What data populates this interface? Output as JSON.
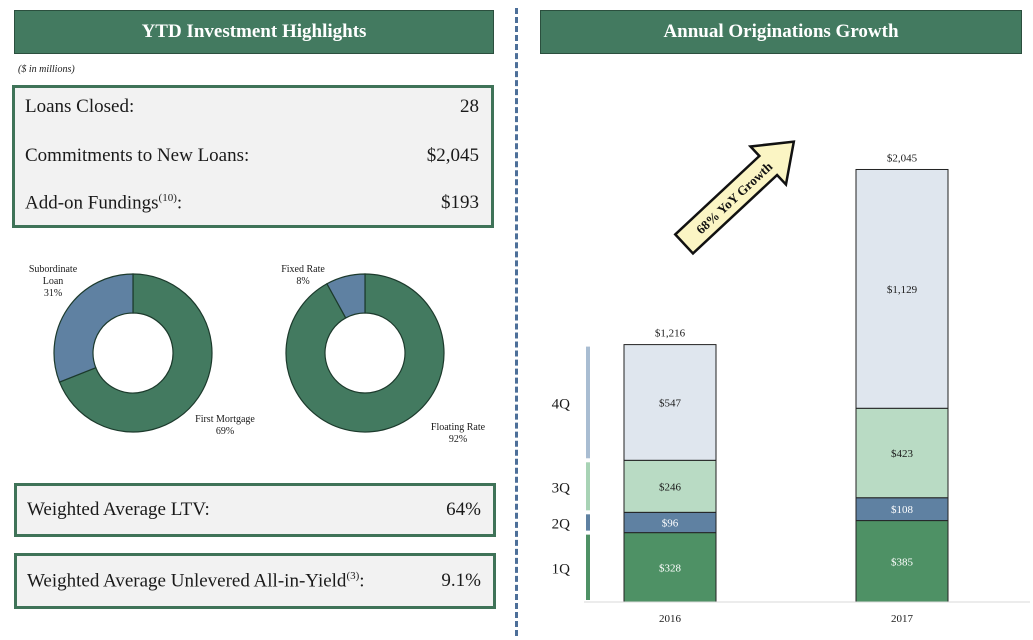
{
  "left": {
    "header": "YTD Investment Highlights",
    "units_note": "($ in millions)",
    "highlights": [
      {
        "label": "Loans Closed:",
        "value": "28"
      },
      {
        "label": "Commitments to New Loans:",
        "value": "$2,045"
      },
      {
        "label": "Add-on Fundings",
        "sup": "(10)",
        "suffix": ":",
        "value": "$193"
      }
    ],
    "donut_left": {
      "slices": [
        {
          "name_lines": [
            "Subordinate",
            "Loan"
          ],
          "pct_label": "31%",
          "value": 31,
          "color": "#5f81a2"
        },
        {
          "name_lines": [
            "First Mortgage"
          ],
          "pct_label": "69%",
          "value": 69,
          "color": "#437a60"
        }
      ]
    },
    "donut_right": {
      "slices": [
        {
          "name_lines": [
            "Fixed Rate"
          ],
          "pct_label": "8%",
          "value": 8,
          "color": "#5f81a2"
        },
        {
          "name_lines": [
            "Floating Rate"
          ],
          "pct_label": "92%",
          "value": 92,
          "color": "#437a60"
        }
      ]
    },
    "ltv": {
      "label": "Weighted Average LTV:",
      "value": "64%"
    },
    "yield": {
      "label": "Weighted Average Unlevered All-in-Yield",
      "sup": "(3)",
      "suffix": ":",
      "value": "9.1%"
    }
  },
  "right": {
    "header": "Annual Originations Growth",
    "arrow_label": "68% YoY Growth"
  },
  "chart_data": {
    "type": "bar",
    "stacked": true,
    "categories": [
      "2016",
      "2017"
    ],
    "series": [
      {
        "name": "1Q",
        "values": [
          328,
          385
        ],
        "labels": [
          "$328",
          "$385"
        ],
        "color": "#4e9165"
      },
      {
        "name": "2Q",
        "values": [
          96,
          108
        ],
        "labels": [
          "$96",
          "$108"
        ],
        "color": "#5f81a2"
      },
      {
        "name": "3Q",
        "values": [
          246,
          423
        ],
        "labels": [
          "$246",
          "$423"
        ],
        "color": "#b9dbc4"
      },
      {
        "name": "4Q",
        "values": [
          547,
          1129
        ],
        "labels": [
          "$547",
          "$1,129"
        ],
        "color": "#dfe6ee"
      }
    ],
    "totals": [
      1216,
      2045
    ],
    "total_labels": [
      "$1,216",
      "$2,045"
    ],
    "legend_placement": "left"
  }
}
